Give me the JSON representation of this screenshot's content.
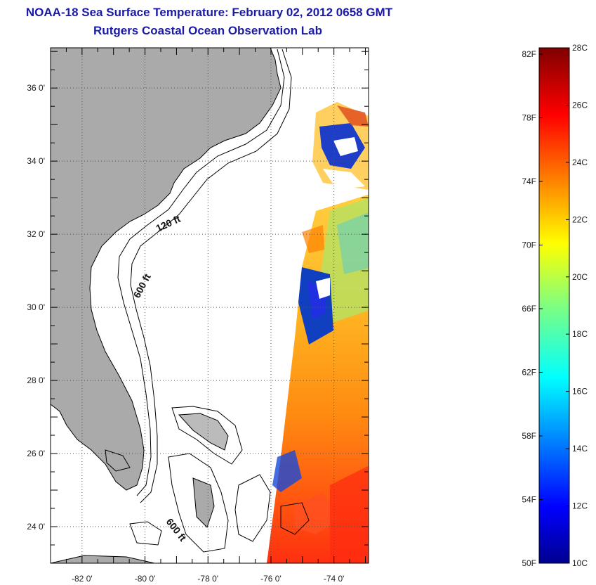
{
  "header": {
    "title": "NOAA-18 Sea Surface Temperature:  February 02, 2012 0658 GMT",
    "subtitle": "Rutgers Coastal Ocean Observation Lab"
  },
  "map": {
    "lat_labels": [
      "36 0'",
      "34 0'",
      "32 0'",
      "30 0'",
      "28 0'",
      "26 0'",
      "24 0'"
    ],
    "lat_values": [
      36,
      34,
      32,
      30,
      28,
      26,
      24
    ],
    "lon_labels": [
      "-82 0'",
      "-80 0'",
      "-78 0'",
      "-76 0'",
      "-74 0'"
    ],
    "lon_values": [
      -82,
      -80,
      -78,
      -76,
      -74
    ],
    "lat_range": [
      23,
      37.1
    ],
    "lon_range": [
      -83,
      -72.9
    ],
    "contour_labels": {
      "shelf_120": "120 ft",
      "shelf_600_north": "600 ft",
      "shelf_600_south": "600 ft"
    },
    "colors": {
      "land": "#aaaaaa",
      "no_data": "#ffffff",
      "grid": "#555555"
    }
  },
  "colorbar": {
    "fahrenheit_labels": [
      "82F",
      "78F",
      "74F",
      "70F",
      "66F",
      "62F",
      "58F",
      "54F",
      "50F"
    ],
    "fahrenheit_values": [
      82,
      78,
      74,
      70,
      66,
      62,
      58,
      54,
      50
    ],
    "celsius_labels": [
      "28C",
      "26C",
      "24C",
      "22C",
      "20C",
      "18C",
      "16C",
      "14C",
      "12C",
      "10C"
    ],
    "celsius_values": [
      28,
      26,
      24,
      22,
      20,
      18,
      16,
      14,
      12,
      10
    ],
    "range_c": [
      10,
      28
    ],
    "colormap": "jet"
  }
}
